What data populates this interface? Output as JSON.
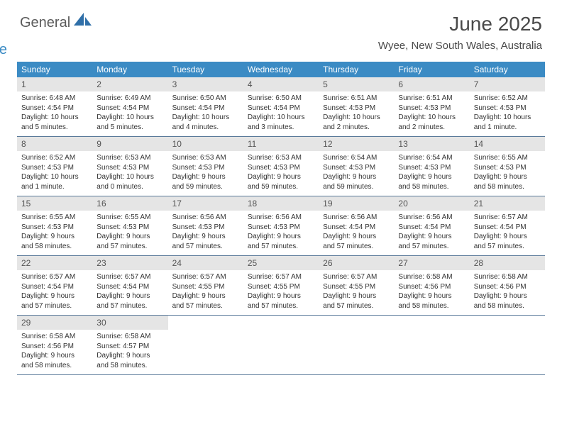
{
  "logo": {
    "text1": "General",
    "text2": "Blue"
  },
  "title": "June 2025",
  "location": "Wyee, New South Wales, Australia",
  "colors": {
    "header_bg": "#3b8bc4",
    "header_text": "#ffffff",
    "daynum_bg": "#e5e5e5",
    "text": "#333333",
    "border": "#5a7a9a"
  },
  "dayNames": [
    "Sunday",
    "Monday",
    "Tuesday",
    "Wednesday",
    "Thursday",
    "Friday",
    "Saturday"
  ],
  "weeks": [
    [
      {
        "n": "1",
        "sr": "6:48 AM",
        "ss": "4:54 PM",
        "dl": "10 hours and 5 minutes."
      },
      {
        "n": "2",
        "sr": "6:49 AM",
        "ss": "4:54 PM",
        "dl": "10 hours and 5 minutes."
      },
      {
        "n": "3",
        "sr": "6:50 AM",
        "ss": "4:54 PM",
        "dl": "10 hours and 4 minutes."
      },
      {
        "n": "4",
        "sr": "6:50 AM",
        "ss": "4:54 PM",
        "dl": "10 hours and 3 minutes."
      },
      {
        "n": "5",
        "sr": "6:51 AM",
        "ss": "4:53 PM",
        "dl": "10 hours and 2 minutes."
      },
      {
        "n": "6",
        "sr": "6:51 AM",
        "ss": "4:53 PM",
        "dl": "10 hours and 2 minutes."
      },
      {
        "n": "7",
        "sr": "6:52 AM",
        "ss": "4:53 PM",
        "dl": "10 hours and 1 minute."
      }
    ],
    [
      {
        "n": "8",
        "sr": "6:52 AM",
        "ss": "4:53 PM",
        "dl": "10 hours and 1 minute."
      },
      {
        "n": "9",
        "sr": "6:53 AM",
        "ss": "4:53 PM",
        "dl": "10 hours and 0 minutes."
      },
      {
        "n": "10",
        "sr": "6:53 AM",
        "ss": "4:53 PM",
        "dl": "9 hours and 59 minutes."
      },
      {
        "n": "11",
        "sr": "6:53 AM",
        "ss": "4:53 PM",
        "dl": "9 hours and 59 minutes."
      },
      {
        "n": "12",
        "sr": "6:54 AM",
        "ss": "4:53 PM",
        "dl": "9 hours and 59 minutes."
      },
      {
        "n": "13",
        "sr": "6:54 AM",
        "ss": "4:53 PM",
        "dl": "9 hours and 58 minutes."
      },
      {
        "n": "14",
        "sr": "6:55 AM",
        "ss": "4:53 PM",
        "dl": "9 hours and 58 minutes."
      }
    ],
    [
      {
        "n": "15",
        "sr": "6:55 AM",
        "ss": "4:53 PM",
        "dl": "9 hours and 58 minutes."
      },
      {
        "n": "16",
        "sr": "6:55 AM",
        "ss": "4:53 PM",
        "dl": "9 hours and 57 minutes."
      },
      {
        "n": "17",
        "sr": "6:56 AM",
        "ss": "4:53 PM",
        "dl": "9 hours and 57 minutes."
      },
      {
        "n": "18",
        "sr": "6:56 AM",
        "ss": "4:53 PM",
        "dl": "9 hours and 57 minutes."
      },
      {
        "n": "19",
        "sr": "6:56 AM",
        "ss": "4:54 PM",
        "dl": "9 hours and 57 minutes."
      },
      {
        "n": "20",
        "sr": "6:56 AM",
        "ss": "4:54 PM",
        "dl": "9 hours and 57 minutes."
      },
      {
        "n": "21",
        "sr": "6:57 AM",
        "ss": "4:54 PM",
        "dl": "9 hours and 57 minutes."
      }
    ],
    [
      {
        "n": "22",
        "sr": "6:57 AM",
        "ss": "4:54 PM",
        "dl": "9 hours and 57 minutes."
      },
      {
        "n": "23",
        "sr": "6:57 AM",
        "ss": "4:54 PM",
        "dl": "9 hours and 57 minutes."
      },
      {
        "n": "24",
        "sr": "6:57 AM",
        "ss": "4:55 PM",
        "dl": "9 hours and 57 minutes."
      },
      {
        "n": "25",
        "sr": "6:57 AM",
        "ss": "4:55 PM",
        "dl": "9 hours and 57 minutes."
      },
      {
        "n": "26",
        "sr": "6:57 AM",
        "ss": "4:55 PM",
        "dl": "9 hours and 57 minutes."
      },
      {
        "n": "27",
        "sr": "6:58 AM",
        "ss": "4:56 PM",
        "dl": "9 hours and 58 minutes."
      },
      {
        "n": "28",
        "sr": "6:58 AM",
        "ss": "4:56 PM",
        "dl": "9 hours and 58 minutes."
      }
    ],
    [
      {
        "n": "29",
        "sr": "6:58 AM",
        "ss": "4:56 PM",
        "dl": "9 hours and 58 minutes."
      },
      {
        "n": "30",
        "sr": "6:58 AM",
        "ss": "4:57 PM",
        "dl": "9 hours and 58 minutes."
      },
      null,
      null,
      null,
      null,
      null
    ]
  ],
  "labels": {
    "sunrise": "Sunrise:",
    "sunset": "Sunset:",
    "daylight": "Daylight:"
  }
}
